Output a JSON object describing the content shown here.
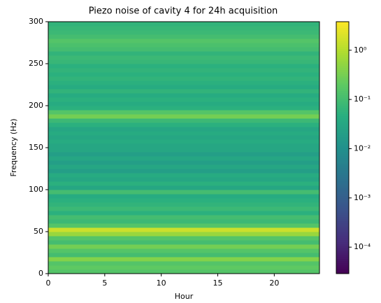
{
  "chart_data": {
    "type": "heatmap",
    "title": "Piezo noise of cavity 4 for 24h acquisition",
    "x_label": "Hour",
    "y_label": "Frequency (Hz)",
    "xlim": [
      0,
      24
    ],
    "xticks": [
      0,
      5,
      10,
      15,
      20
    ],
    "ylim": [
      0,
      300
    ],
    "yticks": [
      0,
      50,
      100,
      150,
      200,
      250,
      300
    ],
    "y_bins": [
      0,
      5,
      10,
      15,
      20,
      25,
      30,
      35,
      40,
      45,
      50,
      55,
      60,
      65,
      70,
      75,
      80,
      85,
      90,
      95,
      100,
      105,
      110,
      115,
      120,
      125,
      130,
      135,
      140,
      145,
      150,
      155,
      160,
      165,
      170,
      175,
      180,
      185,
      190,
      195,
      200,
      205,
      210,
      215,
      220,
      225,
      230,
      235,
      240,
      245,
      250,
      255,
      260,
      265,
      270,
      275,
      280,
      285,
      290,
      295,
      300
    ],
    "values": [
      0.15,
      0.2,
      0.15,
      0.4,
      0.1,
      0.15,
      0.3,
      0.1,
      0.15,
      0.6,
      1.5,
      0.15,
      0.08,
      0.1,
      0.05,
      0.08,
      0.06,
      0.05,
      0.04,
      0.1,
      0.03,
      0.05,
      0.03,
      0.04,
      0.02,
      0.03,
      0.02,
      0.03,
      0.02,
      0.03,
      0.03,
      0.04,
      0.03,
      0.04,
      0.03,
      0.05,
      0.08,
      0.3,
      0.15,
      0.05,
      0.04,
      0.05,
      0.04,
      0.06,
      0.04,
      0.05,
      0.06,
      0.05,
      0.06,
      0.05,
      0.07,
      0.08,
      0.06,
      0.1,
      0.12,
      0.15,
      0.1,
      0.08,
      0.07,
      0.06
    ],
    "colorbar": {
      "log_scale": true,
      "clim": [
        2.9e-05,
        3.8
      ],
      "colormap": "viridis",
      "ticks": [
        {
          "value": 1,
          "label": "10⁰"
        },
        {
          "value": 0.1,
          "label": "10⁻¹"
        },
        {
          "value": 0.01,
          "label": "10⁻²"
        },
        {
          "value": 0.001,
          "label": "10⁻³"
        },
        {
          "value": 0.0001,
          "label": "10⁻⁴"
        }
      ]
    }
  }
}
